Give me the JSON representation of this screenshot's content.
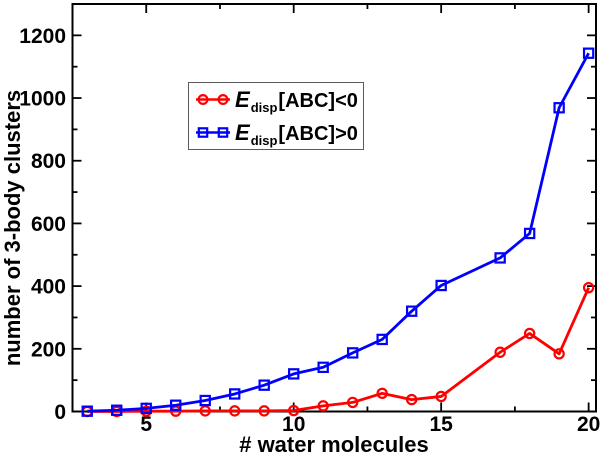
{
  "chart_data": {
    "type": "line",
    "title": "",
    "xlabel": "# water molecules",
    "ylabel": "number of 3-body clusters",
    "xlim": [
      2.5,
      20.25
    ],
    "ylim": [
      0,
      1300
    ],
    "x_major_ticks": [
      5,
      10,
      15,
      20
    ],
    "x_minor_ticks": [
      7.5,
      12.5,
      17.5
    ],
    "y_major_ticks": [
      0,
      200,
      400,
      600,
      800,
      1000,
      1200
    ],
    "y_minor_ticks": [
      100,
      300,
      500,
      700,
      900,
      1100
    ],
    "grid": false,
    "legend_position": "upper-left-inside",
    "background_color": "#ffffff",
    "frame_color": "#000000",
    "text_color": "#000000",
    "series": [
      {
        "name": "E_disp[ABC]<0",
        "marker": "circle",
        "color": "#ff0000",
        "x": [
          3,
          4,
          5,
          6,
          7,
          8,
          9,
          10,
          11,
          12,
          13,
          14,
          15,
          17,
          18,
          19,
          20
        ],
        "y": [
          0,
          0,
          1,
          1,
          2,
          2,
          2,
          3,
          18,
          29,
          58,
          38,
          48,
          189,
          249,
          184,
          395
        ]
      },
      {
        "name": "E_disp[ABC]>0",
        "marker": "square",
        "color": "#0000ff",
        "x": [
          3,
          4,
          5,
          6,
          7,
          8,
          9,
          10,
          11,
          12,
          13,
          14,
          15,
          17,
          18,
          19,
          20
        ],
        "y": [
          1,
          4,
          10,
          20,
          35,
          56,
          84,
          120,
          141,
          187,
          230,
          320,
          402,
          490,
          568,
          969,
          1143
        ]
      }
    ],
    "legend": [
      {
        "e": "E",
        "sub": "disp",
        "rest": "[ABC]<0"
      },
      {
        "e": "E",
        "sub": "disp",
        "rest": "[ABC]>0"
      }
    ]
  }
}
